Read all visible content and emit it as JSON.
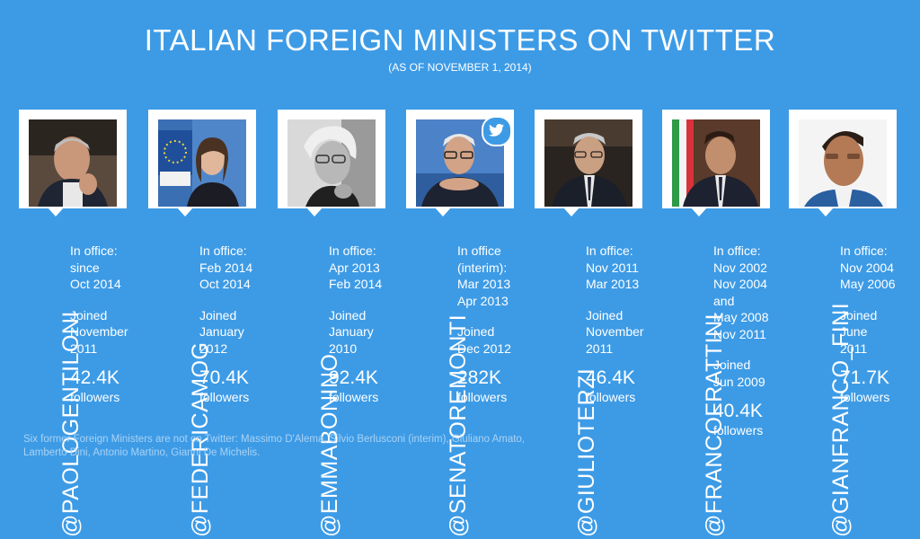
{
  "title": "ITALIAN FOREIGN MINISTERS ON TWITTER",
  "subtitle": "(AS OF NOVEMBER 1, 2014)",
  "ministers": [
    {
      "handle": "@PAOLOGENTILONI",
      "office_label": "In office:",
      "office": [
        "since",
        "Oct 2014"
      ],
      "joined_label": "Joined",
      "joined": [
        "November",
        "2011"
      ],
      "followers": "42.4K",
      "followers_label": "followers"
    },
    {
      "handle": "@FEDERICAMOG",
      "office_label": "In office:",
      "office": [
        "Feb 2014",
        "Oct 2014"
      ],
      "joined_label": "Joined",
      "joined": [
        "January",
        "2012"
      ],
      "followers": "70.4K",
      "followers_label": "followers"
    },
    {
      "handle": "@EMMABONINO",
      "office_label": "In office:",
      "office": [
        "Apr 2013",
        "Feb 2014"
      ],
      "joined_label": "Joined",
      "joined": [
        "January",
        "2010"
      ],
      "followers": "92.4K",
      "followers_label": "followers"
    },
    {
      "handle": "@SENATOREMONTI",
      "office_label": "In office",
      "office": [
        "(interim):",
        "Mar 2013",
        "Apr 2013"
      ],
      "joined_label": "Joined",
      "joined": [
        "Dec 2012"
      ],
      "followers": "282K",
      "followers_label": "followers"
    },
    {
      "handle": "@GIULIOTERZI",
      "office_label": "In office:",
      "office": [
        "Nov 2011",
        "Mar 2013"
      ],
      "joined_label": "Joined",
      "joined": [
        "November",
        "2011"
      ],
      "followers": "46.4K",
      "followers_label": "followers"
    },
    {
      "handle": "@FRANCOFRATTINI",
      "office_label": "In office:",
      "office": [
        "Nov 2002",
        "Nov 2004",
        "and",
        "May 2008",
        "Nov 2011"
      ],
      "joined_label": "Joined",
      "joined": [
        "Jun 2009"
      ],
      "followers": "40.4K",
      "followers_label": "followers"
    },
    {
      "handle": "@GIANFRANCO_FINI",
      "office_label": "In office:",
      "office": [
        "Nov 2004",
        "May 2006"
      ],
      "joined_label": "Joined",
      "joined": [
        "June",
        "2011"
      ],
      "followers": "71.7K",
      "followers_label": "followers"
    }
  ],
  "footnote": "Six former Foreign Ministers are not on Twitter: Massimo D'Alema, Silvio Berlusconi (interim), Giuliano Amato, Lamberto Dini, Antonio Martino, Gianni De Michelis.",
  "icons": {
    "badge": "twitter-bird-icon"
  },
  "colors": {
    "background": "#3d9be6",
    "card": "#ffffff"
  }
}
